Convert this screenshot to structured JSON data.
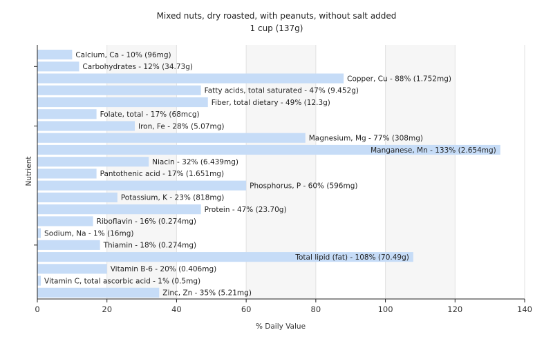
{
  "chart_data": {
    "type": "bar",
    "orientation": "horizontal",
    "title": "Mixed nuts, dry roasted, with peanuts, without salt added",
    "subtitle": "1 cup (137g)",
    "xlabel": "% Daily Value",
    "ylabel": "Nutrient",
    "xlim": [
      0,
      140
    ],
    "xticks": [
      0,
      20,
      40,
      60,
      80,
      100,
      120,
      140
    ],
    "grid": true,
    "legend": "none",
    "bar_color": "#c6dcf7",
    "categories": [
      "Calcium, Ca",
      "Carbohydrates",
      "Copper, Cu",
      "Fatty acids, total saturated",
      "Fiber, total dietary",
      "Folate, total",
      "Iron, Fe",
      "Magnesium, Mg",
      "Manganese, Mn",
      "Niacin",
      "Pantothenic acid",
      "Phosphorus, P",
      "Potassium, K",
      "Protein",
      "Riboflavin",
      "Sodium, Na",
      "Thiamin",
      "Total lipid (fat)",
      "Vitamin B-6",
      "Vitamin C, total ascorbic acid",
      "Zinc, Zn"
    ],
    "values": [
      10,
      12,
      88,
      47,
      49,
      17,
      28,
      77,
      133,
      32,
      17,
      60,
      23,
      47,
      16,
      1,
      18,
      108,
      20,
      1,
      35
    ],
    "labels": [
      "Calcium, Ca - 10% (96mg)",
      "Carbohydrates - 12% (34.73g)",
      "Copper, Cu - 88% (1.752mg)",
      "Fatty acids, total saturated - 47% (9.452g)",
      "Fiber, total dietary - 49% (12.3g)",
      "Folate, total - 17% (68mcg)",
      "Iron, Fe - 28% (5.07mg)",
      "Magnesium, Mg - 77% (308mg)",
      "Manganese, Mn - 133% (2.654mg)",
      "Niacin - 32% (6.439mg)",
      "Pantothenic acid - 17% (1.651mg)",
      "Phosphorus, P - 60% (596mg)",
      "Potassium, K - 23% (818mg)",
      "Protein - 47% (23.70g)",
      "Riboflavin - 16% (0.274mg)",
      "Sodium, Na - 1% (16mg)",
      "Thiamin - 18% (0.274mg)",
      "Total lipid (fat) - 108% (70.49g)",
      "Vitamin B-6 - 20% (0.406mg)",
      "Vitamin C, total ascorbic acid - 1% (0.5mg)",
      "Zinc, Zn - 35% (5.21mg)"
    ],
    "label_inside": [
      false,
      false,
      false,
      false,
      false,
      false,
      false,
      false,
      true,
      false,
      false,
      false,
      false,
      false,
      false,
      false,
      false,
      true,
      false,
      false,
      false
    ]
  }
}
